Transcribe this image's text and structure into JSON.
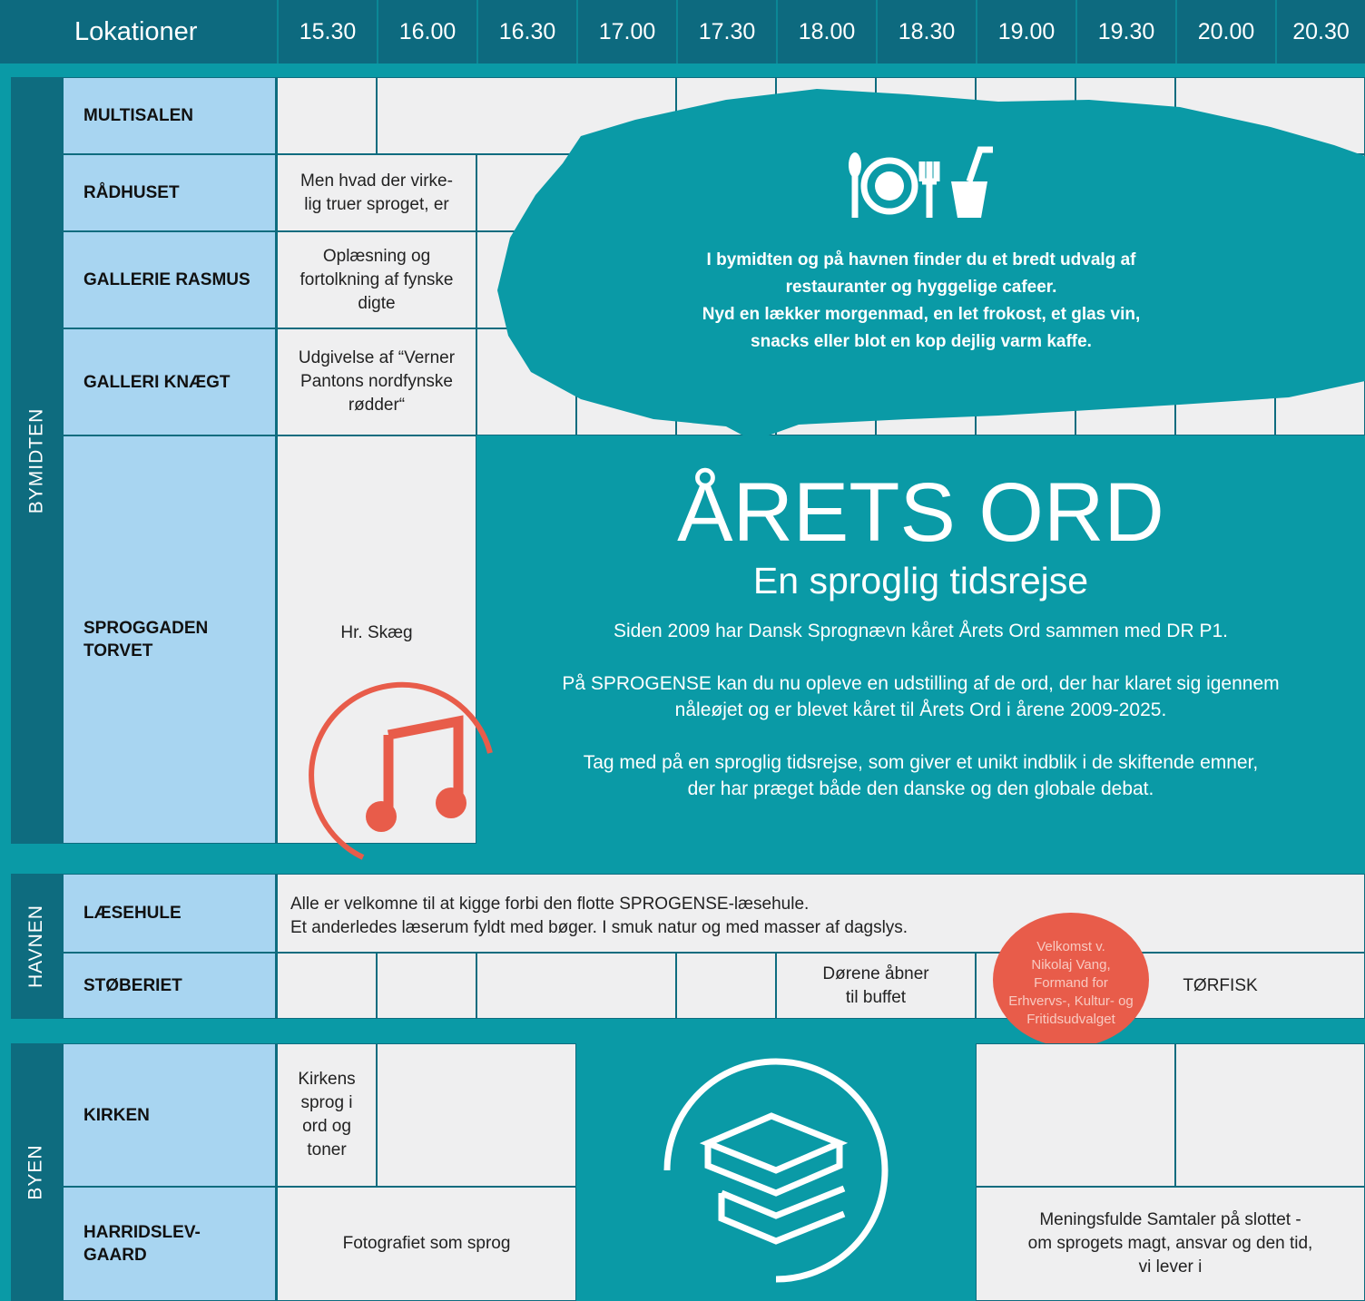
{
  "header": {
    "title": "Lokationer",
    "times": [
      "15.30",
      "16.00",
      "16.30",
      "17.00",
      "17.30",
      "18.00",
      "18.30",
      "19.00",
      "19.30",
      "20.00",
      "20.30"
    ]
  },
  "sections": [
    {
      "label": "BYMIDTEN",
      "rows": [
        [
          "MULTISALEN"
        ],
        [
          "RÅDHUSET"
        ],
        [
          "GALLERIE RASMUS"
        ],
        [
          "GALLERI KNÆGT"
        ],
        [
          "SPROGGADEN",
          "TORVET"
        ]
      ]
    },
    {
      "label": "HAVNEN",
      "rows": [
        [
          "LÆSEHULE"
        ],
        [
          "STØBERIET"
        ]
      ]
    },
    {
      "label": "BYEN",
      "rows": [
        [
          "KIRKEN"
        ],
        [
          "HARRIDSLEV-",
          "GAARD"
        ]
      ]
    }
  ],
  "events": {
    "raadhuset": [
      "Men hvad der virke-",
      "lig truer sproget, er"
    ],
    "gallerie_rasmus": [
      "Oplæsning og",
      "fortolkning af fynske",
      "digte"
    ],
    "galleri_knaegt": [
      "Udgivelse af “Verner",
      "Pantons nordfynske",
      "rødder“"
    ],
    "sproggaden": [
      "Hr. Skæg"
    ],
    "laesehule": [
      "Alle er velkomne til at kigge forbi den flotte SPROGENSE-læsehule.",
      "Et anderledes læserum fyldt med bøger. I smuk natur og med masser af dagslys."
    ],
    "stoberiet_buffet": [
      "Dørene åbner",
      "til buffet"
    ],
    "velkomst": [
      "Velkomst v.",
      "Nikolaj Vang,",
      "Formand for",
      "Erhvervs-, Kultur- og",
      "Fritidsudvalget"
    ],
    "torfisk": [
      "TØRFISK"
    ],
    "kirken": [
      "Kirkens",
      "sprog i",
      "ord og",
      "toner"
    ],
    "fotografiet": [
      "Fotografiet som sprog"
    ],
    "samtaler": [
      "Meningsfulde Samtaler på slottet -",
      "om sprogets magt, ansvar og den tid,",
      "vi lever i"
    ]
  },
  "food": [
    "I bymidten og på havnen finder du et bredt udvalg af",
    "restauranter og hyggelige cafeer.",
    "Nyd en lækker morgenmad, en let frokost, et glas vin,",
    "snacks eller blot en kop dejlig varm kaffe."
  ],
  "arets_ord": {
    "title": "ÅRETS ORD",
    "subtitle": "En sproglig tidsrejse",
    "paragraphs": [
      [
        "Siden 2009 har Dansk Sprognævn kåret Årets Ord sammen med DR P1."
      ],
      [
        "På SPROGENSE kan du nu opleve en udstilling af de ord, der har klaret sig igennem",
        "nåleøjet og er blevet kåret til Årets Ord i årene 2009-2025."
      ],
      [
        "Tag med på en sproglig tidsrejse, som giver et unikt indblik i de skiftende emner,",
        "der har præget både den danske og den globale debat."
      ]
    ]
  }
}
